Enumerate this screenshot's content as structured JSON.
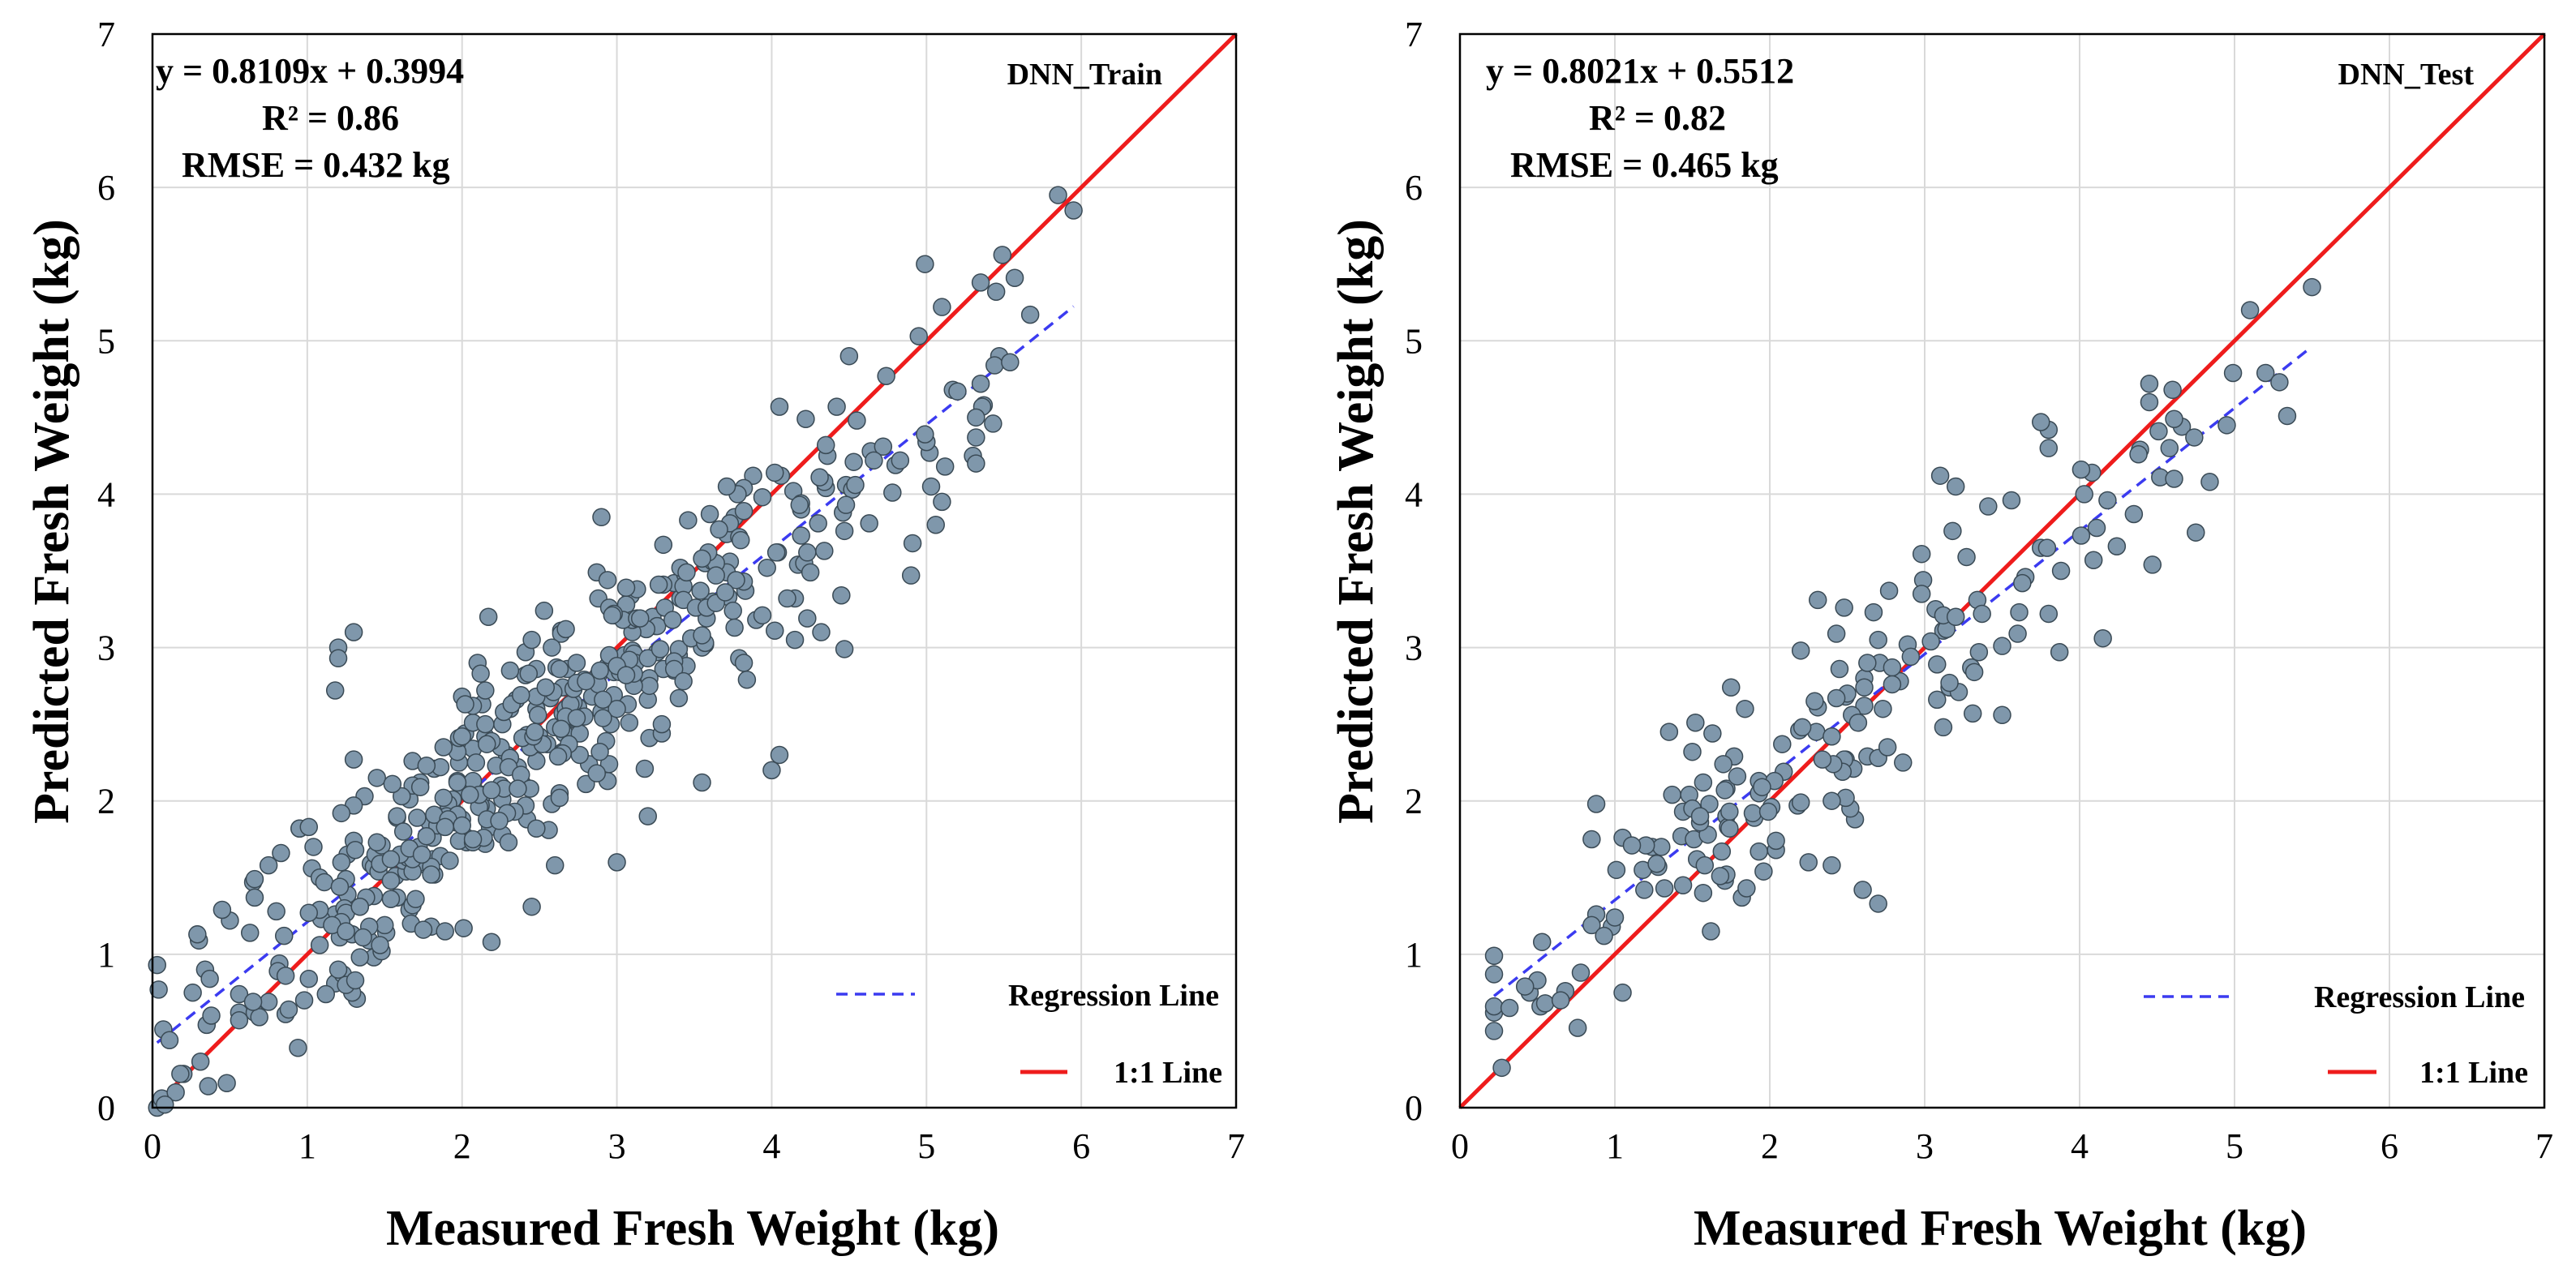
{
  "chart_data": [
    {
      "type": "scatter",
      "label": "DNN_Train",
      "xlabel": "Measured Fresh Weight (kg)",
      "ylabel": "Predicted  Fresh Weight (kg)",
      "xlim": [
        0,
        7
      ],
      "ylim": [
        0,
        7
      ],
      "xticks": [
        "0",
        "1",
        "2",
        "3",
        "4",
        "5",
        "6",
        "7"
      ],
      "yticks": [
        "0",
        "1",
        "2",
        "3",
        "4",
        "5",
        "6",
        "7"
      ],
      "grid": true,
      "equation": "y = 0.8109x + 0.3994",
      "r2": "R² = 0.86",
      "rmse": "RMSE = 0.432 kg",
      "regression": {
        "slope": 0.8109,
        "intercept": 0.3994,
        "x_range": [
          0.03,
          5.95
        ]
      },
      "legend": {
        "regression": "Regression Line",
        "identity": "1:1 Line",
        "position": "bottom-right"
      },
      "point_count": 520,
      "points": [],
      "sample_seed": 11,
      "sample_x_range": [
        0.03,
        5.95
      ],
      "sample_noise_sd": 0.35,
      "sample_anchors": [
        [
          0.03,
          0.0
        ],
        [
          0.06,
          0.06
        ],
        [
          0.15,
          0.1
        ],
        [
          0.2,
          0.22
        ],
        [
          0.3,
          1.09
        ],
        [
          5.85,
          5.95
        ],
        [
          5.95,
          5.85
        ],
        [
          5.35,
          5.38
        ],
        [
          5.1,
          5.22
        ],
        [
          5.67,
          5.17
        ],
        [
          5.45,
          5.32
        ],
        [
          5.35,
          4.72
        ],
        [
          5.1,
          3.95
        ],
        [
          4.9,
          3.47
        ],
        [
          5.3,
          4.25
        ],
        [
          4.95,
          5.03
        ],
        [
          4.55,
          4.48
        ],
        [
          4.5,
          4.9
        ],
        [
          4.05,
          4.57
        ],
        [
          1.3,
          3.1
        ],
        [
          1.2,
          3.0
        ],
        [
          1.2,
          2.93
        ],
        [
          1.18,
          2.72
        ],
        [
          4.32,
          3.1
        ],
        [
          4.15,
          3.05
        ],
        [
          4.0,
          2.2
        ],
        [
          4.05,
          2.3
        ],
        [
          3.0,
          1.6
        ],
        [
          2.6,
          1.58
        ],
        [
          3.2,
          1.9
        ],
        [
          3.55,
          2.12
        ],
        [
          1.8,
          1.18
        ],
        [
          1.2,
          0.83
        ],
        [
          0.95,
          1.82
        ],
        [
          0.75,
          1.58
        ],
        [
          0.65,
          1.47
        ]
      ],
      "colors": {
        "point": "#7f97ab",
        "regression": "#3b3bf0",
        "identity": "#ee1c1c"
      }
    },
    {
      "type": "scatter",
      "label": "DNN_Test",
      "xlabel": "Measured Fresh Weight (kg)",
      "ylabel": "Predicted  Fresh Weight (kg)",
      "xlim": [
        0,
        7
      ],
      "ylim": [
        0,
        7
      ],
      "xticks": [
        "0",
        "1",
        "2",
        "3",
        "4",
        "5",
        "6",
        "7"
      ],
      "yticks": [
        "0",
        "1",
        "2",
        "3",
        "4",
        "5",
        "6",
        "7"
      ],
      "grid": true,
      "equation": "y = 0.8021x + 0.5512",
      "r2": "R² = 0.82",
      "rmse": "RMSE = 0.465 kg",
      "regression": {
        "slope": 0.8021,
        "intercept": 0.5512,
        "x_range": [
          0.22,
          5.5
        ]
      },
      "legend": {
        "regression": "Regression Line",
        "identity": "1:1 Line",
        "position": "bottom-right"
      },
      "point_count": 210,
      "points": [],
      "sample_seed": 29,
      "sample_x_range": [
        0.22,
        5.5
      ],
      "sample_noise_sd": 0.35,
      "sample_anchors": [
        [
          0.22,
          0.87
        ],
        [
          0.45,
          0.75
        ],
        [
          0.52,
          0.66
        ],
        [
          1.05,
          0.75
        ],
        [
          5.1,
          5.2
        ],
        [
          5.5,
          5.35
        ],
        [
          4.95,
          4.45
        ],
        [
          4.75,
          3.75
        ],
        [
          4.6,
          4.68
        ],
        [
          4.45,
          4.72
        ],
        [
          4.45,
          4.6
        ],
        [
          3.8,
          4.42
        ],
        [
          3.8,
          4.3
        ],
        [
          3.1,
          4.12
        ],
        [
          3.2,
          4.05
        ],
        [
          2.6,
          1.42
        ],
        [
          2.7,
          1.33
        ],
        [
          2.25,
          1.6
        ],
        [
          2.4,
          1.58
        ],
        [
          2.55,
          1.88
        ],
        [
          0.88,
          1.98
        ],
        [
          0.85,
          1.75
        ],
        [
          1.35,
          2.45
        ]
      ],
      "colors": {
        "point": "#7f97ab",
        "regression": "#3b3bf0",
        "identity": "#ee1c1c"
      }
    }
  ]
}
